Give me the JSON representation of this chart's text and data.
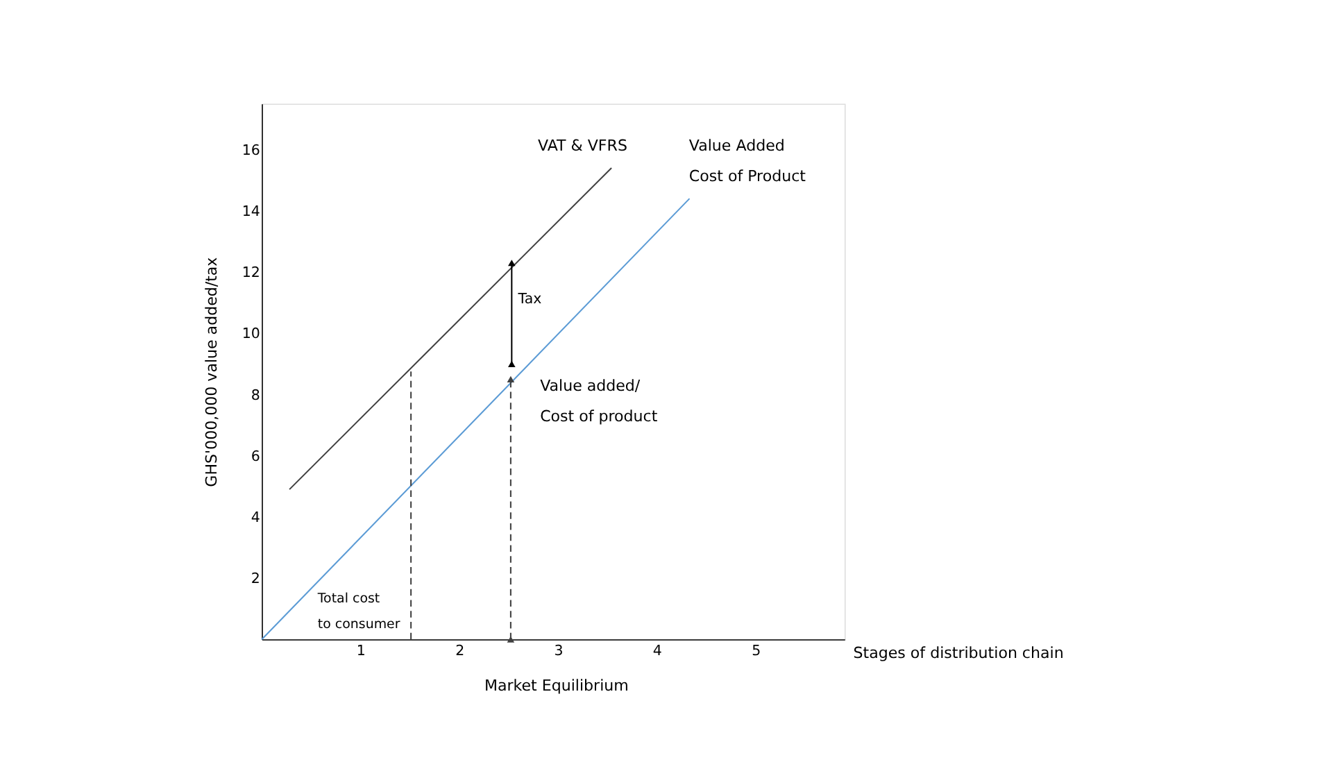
{
  "chart_data": {
    "type": "line",
    "xlabel": "Stages of distribution chain",
    "ylabel": "GHS'000,000 value added/tax",
    "xlim": [
      0,
      5.9
    ],
    "ylim": [
      0,
      17.5
    ],
    "xticks": [
      1,
      2,
      3,
      4,
      5
    ],
    "yticks": [
      2,
      4,
      6,
      8,
      10,
      12,
      14,
      16
    ],
    "grid": false,
    "series": [
      {
        "x": [
          0.28,
          3.54
        ],
        "values": [
          4.9,
          15.4
        ],
        "color": "#404040",
        "line_style": "solid"
      },
      {
        "x": [
          0,
          4.33
        ],
        "values": [
          0,
          14.4
        ],
        "color": "#5b9bd5",
        "line_style": "solid"
      },
      {
        "x": [
          1.51,
          1.51
        ],
        "values": [
          0,
          8.75
        ],
        "color": "#404040",
        "line_style": "dashed"
      },
      {
        "x": [
          2.52,
          2.52
        ],
        "values": [
          0,
          8.5
        ],
        "color": "#404040",
        "line_style": "dashed",
        "marker": "triangle"
      },
      {
        "x": [
          2.53,
          2.53
        ],
        "values": [
          9.0,
          12.3
        ],
        "color": "#000000",
        "line_style": "solid",
        "marker": "triangle"
      }
    ],
    "annotations": [
      "VAT & VFRS",
      "Value Added\nCost of Product",
      "Tax",
      "Value added/\nCost of product",
      "Total cost\nto consumer",
      "Market Equilibrium"
    ]
  }
}
